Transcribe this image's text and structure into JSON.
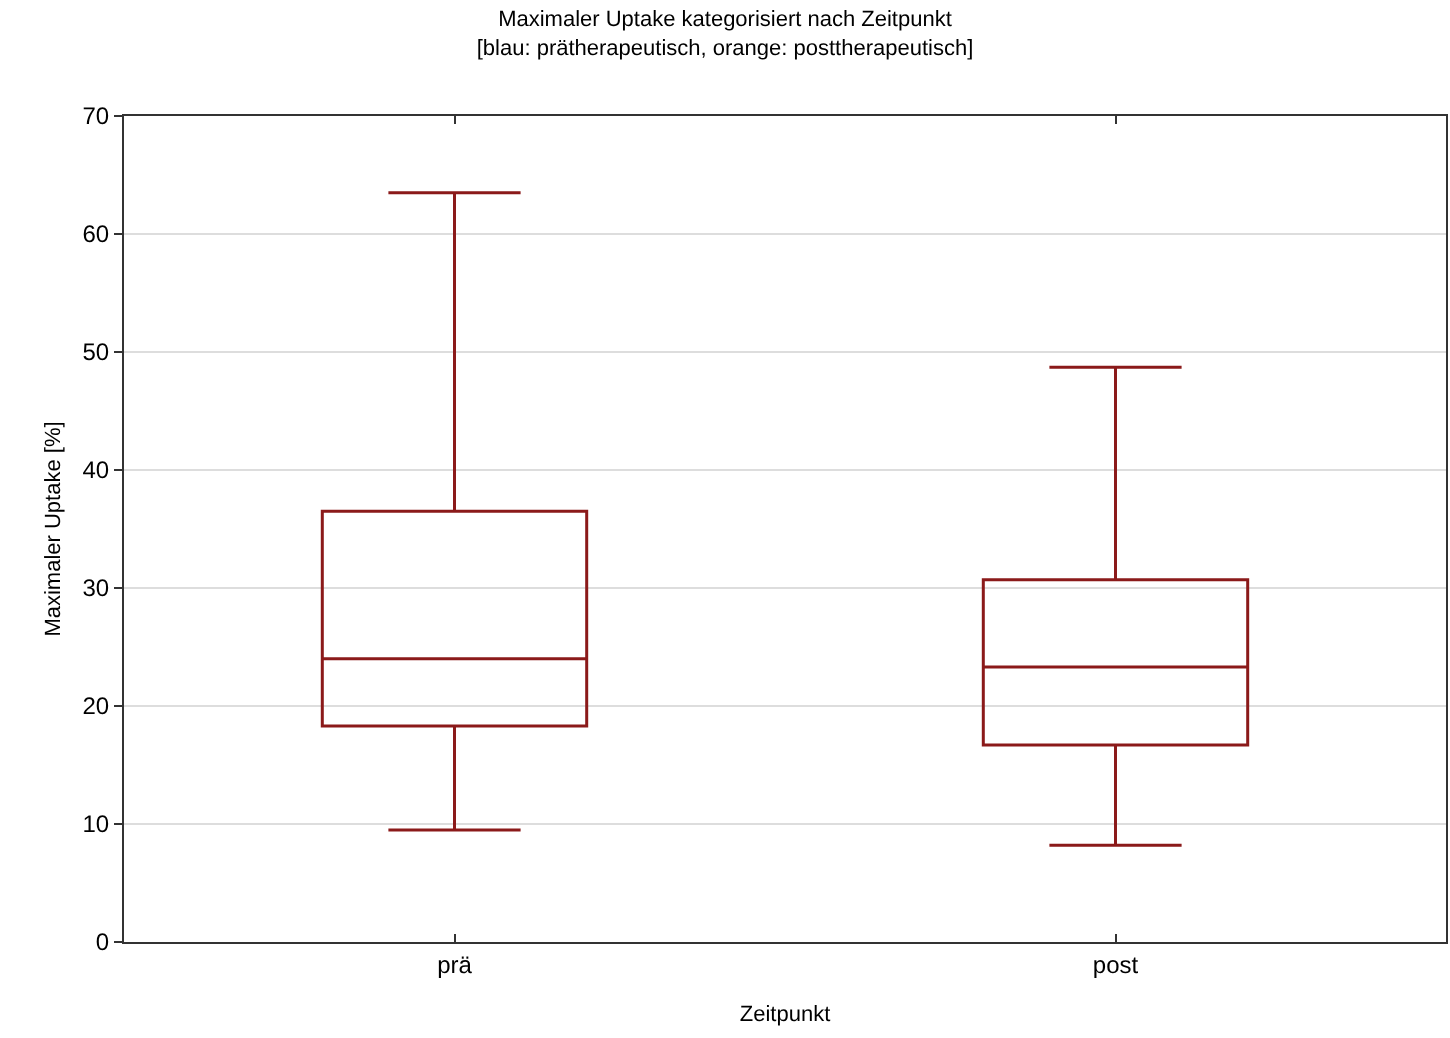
{
  "chart_data": {
    "type": "box",
    "title": "Maximaler Uptake kategorisiert nach Zeitpunkt",
    "subtitle": "[blau: prätherapeutisch, orange: posttherapeutisch]",
    "xlabel": "Zeitpunkt",
    "ylabel": "Maximaler Uptake [%]",
    "categories": [
      "prä",
      "post"
    ],
    "color": "#8b1a1a",
    "boxes": [
      {
        "low": 9.5,
        "q1": 18.3,
        "median": 24.0,
        "q3": 36.5,
        "high": 63.5
      },
      {
        "low": 8.2,
        "q1": 16.7,
        "median": 23.3,
        "q3": 30.7,
        "high": 48.7
      }
    ],
    "ylim": [
      0,
      70
    ],
    "yticks": [
      0,
      10,
      20,
      30,
      40,
      50,
      60,
      70
    ],
    "grid": "y",
    "legend": false
  }
}
